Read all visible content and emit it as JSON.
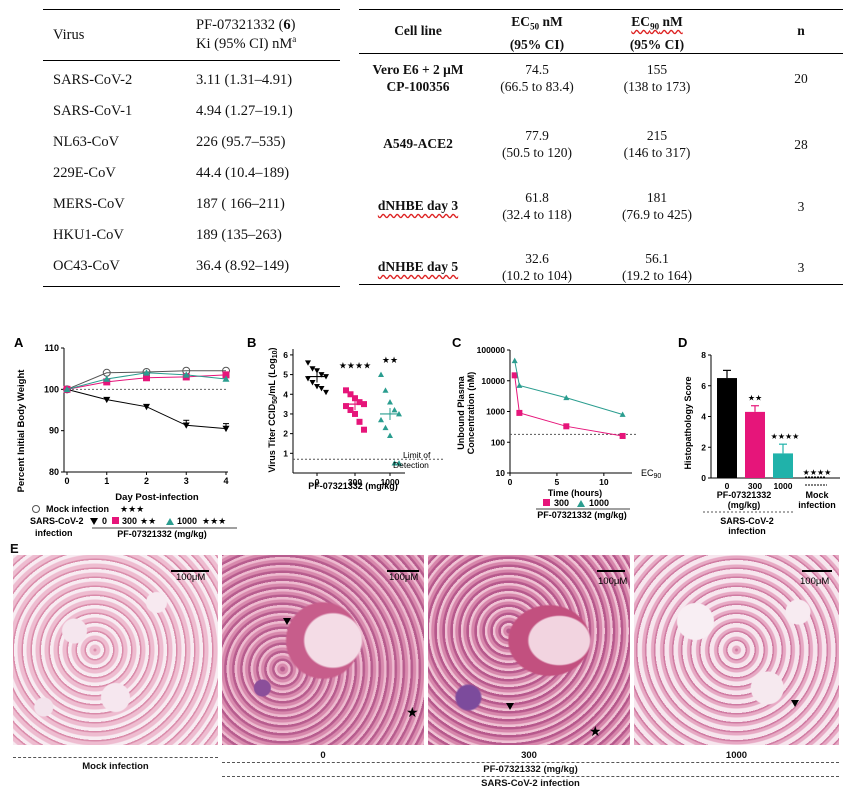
{
  "table1": {
    "header": {
      "virus": "Virus",
      "compound_line1": "PF-07321332 (",
      "compound_num": "6",
      "compound_line1_end": ")",
      "ki_line": "Ki (95% CI) nM",
      "ki_sup": "a"
    },
    "rows": [
      {
        "virus": "SARS-CoV-2",
        "ki": "3.11 (1.31–4.91)"
      },
      {
        "virus": "SARS-CoV-1",
        "ki": "4.94  (1.27–19.1)"
      },
      {
        "virus": "NL63-CoV",
        "ki": "226 (95.7–535)"
      },
      {
        "virus": "229E-CoV",
        "ki": "44.4 (10.4–189)"
      },
      {
        "virus": "MERS-CoV",
        "ki": "187 ( 166–211)"
      },
      {
        "virus": "HKU1-CoV",
        "ki": "189 (135–263)"
      },
      {
        "virus": "OC43-CoV",
        "ki": "36.4 (8.92–149)"
      }
    ]
  },
  "table2": {
    "header": {
      "cell_line": "Cell line",
      "ec50_a": "EC",
      "ec50_sub": "50",
      "ec50_b": " nM",
      "ec90_a": "EC",
      "ec90_sub": "90",
      "ec90_b": " nM",
      "ci": "(95% CI)",
      "n": "n"
    },
    "rows": [
      {
        "cell_line_1": "Vero E6 + 2 μM",
        "cell_line_2": "CP-100356",
        "ec50": "74.5",
        "ec50_ci": "(66.5 to 83.4)",
        "ec90": "155",
        "ec90_ci": "(138 to 173)",
        "n": "20"
      },
      {
        "cell_line_1": "A549-ACE2",
        "cell_line_2": "",
        "ec50": "77.9",
        "ec50_ci": "(50.5 to 120)",
        "ec90": "215",
        "ec90_ci": "(146 to 317)",
        "n": "28"
      },
      {
        "cell_line_1": "dNHBE day 3",
        "cell_line_2": "",
        "ec50": "61.8",
        "ec50_ci": "(32.4 to 118)",
        "ec90": "181",
        "ec90_ci": "(76.9 to 425)",
        "n": "3"
      },
      {
        "cell_line_1": "dNHBE day 5",
        "cell_line_2": "",
        "ec50": "32.6",
        "ec50_ci": "(10.2 to 104)",
        "ec90": "56.1",
        "ec90_ci": "(19.2 to 164)",
        "n": "3"
      }
    ]
  },
  "panels": {
    "A": {
      "letter": "A",
      "ylabel": "Percent Initial Body Weight",
      "xlabel": "Day Post-infection",
      "legend_mock": "Mock infection",
      "legend_mock_stars": "★★★",
      "legend_sars": "SARS-CoV-2",
      "legend_infection": "infection",
      "legend_d0": "0",
      "legend_d300": "300",
      "legend_d300_stars": "★★",
      "legend_d1000": "1000",
      "legend_d1000_stars": "★★★",
      "legend_drug": "PF-07321332 (mg/kg)"
    },
    "B": {
      "letter": "B",
      "ylabel_a": "Virus Titer CCID",
      "ylabel_sub": "50",
      "ylabel_b": "/mL (Log",
      "ylabel_sub2": "10",
      "ylabel_c": ")",
      "xlabel": "PF-07321332 (mg/kg)",
      "lod_1": "Limit of",
      "lod_2": "Detection",
      "stars_300": "★★★★",
      "stars_1000": "★★"
    },
    "C": {
      "letter": "C",
      "ylabel_1": "Unbound Plasma",
      "ylabel_2": "Concentration (nM)",
      "xlabel": "Time (hours)",
      "legend_300": "300",
      "legend_1000": "1000",
      "drug": "PF-07321332 (mg/kg)",
      "ec90_a": "EC",
      "ec90_sub": "90"
    },
    "D": {
      "letter": "D",
      "ylabel": "Histopathology Score",
      "xlabel_1": "PF-07321332",
      "xlabel_2": "(mg/kg)",
      "mock_1": "Mock",
      "mock_2": "infection",
      "sars_1": "SARS-CoV-2",
      "sars_2": "infection",
      "stars_300": "★★",
      "stars_1000": "★★★★",
      "stars_mock": "★★★★"
    },
    "E": {
      "letter": "E",
      "scale": "100μM",
      "label_mock": "Mock infection",
      "label_0": "0",
      "label_300": "300",
      "label_1000": "1000",
      "drug": "PF-07321332 (mg/kg)",
      "infection": "SARS-CoV-2 infection"
    }
  },
  "chart_data": [
    {
      "type": "line",
      "title": "",
      "xlabel": "Day Post-infection",
      "ylabel": "Percent Initial Body Weight",
      "ylim": [
        80,
        110
      ],
      "x": [
        0,
        1,
        2,
        3,
        4
      ],
      "xticks": [
        0,
        1,
        2,
        3,
        4
      ],
      "yticks": [
        80,
        90,
        100,
        110
      ],
      "series": [
        {
          "name": "Mock infection",
          "values": [
            100,
            104,
            104.2,
            104.5,
            104.5
          ],
          "color": "#555555",
          "marker": "circle-open"
        },
        {
          "name": "0",
          "values": [
            100,
            97.5,
            95.8,
            91.3,
            90.5
          ],
          "color": "#000000",
          "marker": "triangle-down"
        },
        {
          "name": "300",
          "values": [
            100,
            101.8,
            102.8,
            103,
            103.5
          ],
          "color": "#e6157a",
          "marker": "square"
        },
        {
          "name": "1000",
          "values": [
            100,
            102.5,
            104,
            103.5,
            102.5
          ],
          "color": "#2a9d8f",
          "marker": "triangle-up"
        }
      ]
    },
    {
      "type": "scatter",
      "title": "",
      "xlabel": "PF-07321332 (mg/kg)",
      "ylim": [
        0,
        6
      ],
      "yticks": [
        1,
        2,
        3,
        4,
        5,
        6
      ],
      "categories": [
        "0",
        "300",
        "1000"
      ],
      "limit_of_detection": 0.7,
      "series": [
        {
          "name": "0",
          "color": "#000000",
          "marker": "triangle-down",
          "mean": 4.9,
          "values": [
            5.6,
            5.3,
            5.2,
            5.0,
            4.9,
            4.8,
            4.6,
            4.4,
            4.3,
            4.1
          ]
        },
        {
          "name": "300",
          "color": "#e6157a",
          "marker": "square",
          "mean": 3.5,
          "values": [
            4.2,
            4.0,
            3.8,
            3.6,
            3.5,
            3.4,
            3.2,
            3.0,
            2.6,
            2.2
          ]
        },
        {
          "name": "1000",
          "color": "#2a9d8f",
          "marker": "triangle-up",
          "mean": 3.0,
          "values": [
            5.0,
            4.2,
            3.6,
            3.2,
            3.0,
            2.7,
            2.3,
            1.9,
            0.5,
            0.5
          ]
        }
      ]
    },
    {
      "type": "line",
      "title": "",
      "xlabel": "Time (hours)",
      "log_y": true,
      "ylim": [
        10,
        100000
      ],
      "yticks": [
        10,
        100,
        1000,
        10000,
        100000
      ],
      "xticks": [
        0,
        5,
        10
      ],
      "xlim": [
        0,
        13
      ],
      "ec90": 181,
      "series": [
        {
          "name": "300",
          "color": "#e6157a",
          "marker": "square",
          "x": [
            0.5,
            1,
            6,
            12
          ],
          "values": [
            15000,
            900,
            330,
            160
          ]
        },
        {
          "name": "1000",
          "color": "#2a9d8f",
          "marker": "triangle-up",
          "x": [
            0.5,
            1,
            6,
            12
          ],
          "values": [
            45000,
            7000,
            2800,
            800
          ]
        }
      ]
    },
    {
      "type": "bar",
      "title": "",
      "ylabel": "Histopathology Score",
      "ylim": [
        0,
        8
      ],
      "yticks": [
        0,
        2,
        4,
        6,
        8
      ],
      "categories": [
        "0",
        "300",
        "1000",
        "Mock infection"
      ],
      "values": [
        6.5,
        4.3,
        1.6,
        0
      ],
      "errors": [
        0.5,
        0.4,
        0.6,
        0
      ],
      "colors": [
        "#000000",
        "#e6157a",
        "#20b2aa",
        "#000000"
      ]
    }
  ]
}
